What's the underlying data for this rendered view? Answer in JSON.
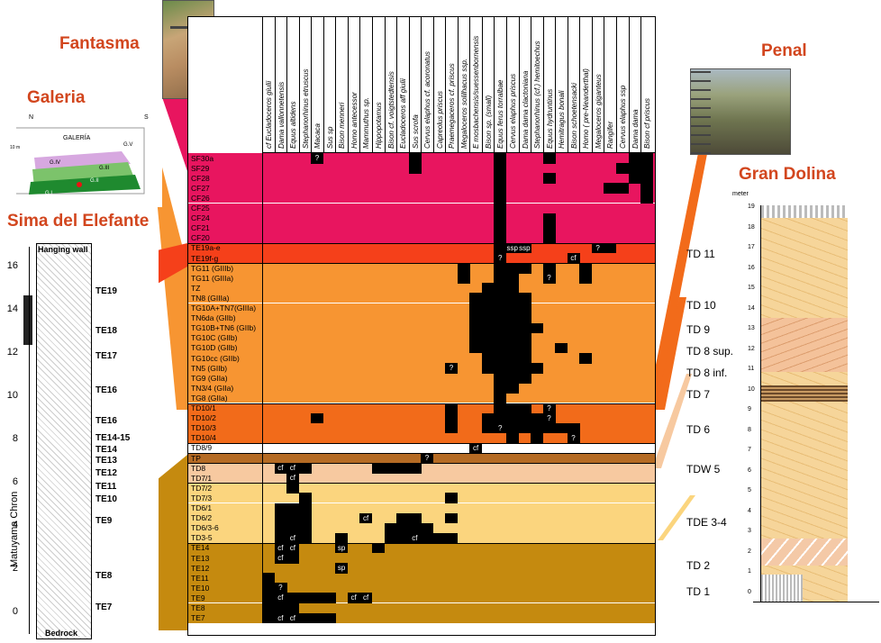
{
  "sites": {
    "fantasma": "Fantasma",
    "galeria": "Galeria",
    "sima": "Sima del Elefante",
    "penal": "Penal",
    "gran_dolina": "Gran Dolina"
  },
  "colors": {
    "sf": "#e8155f",
    "te_upper": "#f5401a",
    "tg": "#f79532",
    "td10": "#f26b1a",
    "tdw": "#f7c9a0",
    "tde": "#fbd57e",
    "te_lower": "#c58a0f",
    "td_brown": "#b56b24"
  },
  "galeria_map": {
    "north": "N",
    "south": "S",
    "title": "GALERÍA",
    "gv": "G.V",
    "giv": "G.IV",
    "giii": "G.III",
    "gii": "G.II",
    "gi": "G.I",
    "scale": "10 m"
  },
  "species": [
    "cf Eucladoceros giulii",
    "Dama vallonnetensis",
    "Equus altidens",
    "Stephanorhinus etruscus",
    "Macaca",
    "Sus sp",
    "Bison menneri",
    "Homo antecessor",
    "Mammuthus sp.",
    "Hippopotamus",
    "Bison cf. voigtstedtensis",
    "Eucladoceros aff giulii",
    "Sus scrofa",
    "Cervus elaphus cf. acoronatus",
    "Capreolus priscus",
    "Praemegaceros cf. priscus",
    "Megaloceros solilhacus ssp.",
    "E mosbachensis/suessenbornensis",
    "Bison sp. (small)",
    "Equus ferus torralbae",
    "Cervus elaphus priscus",
    "Dama dama clactoniana",
    "Stephanorhinus (cf.) hemitoechus",
    "Equus hydruntinus",
    "Hemitragus bonali",
    "Bison schoetensacki",
    "Homo ( pre-Neanderthal)",
    "Megaloceros giganteus",
    "Rangifer",
    "Cervus elaphus ssp",
    "Dama dama",
    "Bison cf priscus"
  ],
  "levels": [
    {
      "name": "SF30a",
      "group": "sf"
    },
    {
      "name": "SF29",
      "group": "sf"
    },
    {
      "name": "CF28",
      "group": "sf"
    },
    {
      "name": "CF27",
      "group": "sf"
    },
    {
      "name": "CF26",
      "group": "sf"
    },
    {
      "name": "CF25",
      "group": "sf"
    },
    {
      "name": "CF24",
      "group": "sf"
    },
    {
      "name": "CF21",
      "group": "sf"
    },
    {
      "name": "CF20",
      "group": "sf"
    },
    {
      "name": "TE19a-e",
      "group": "te_upper"
    },
    {
      "name": "TE19f-g",
      "group": "te_upper"
    },
    {
      "name": "TG11 (GIIIb)",
      "group": "tg"
    },
    {
      "name": "TG11 (GIIIa)",
      "group": "tg"
    },
    {
      "name": "TZ",
      "group": "tg"
    },
    {
      "name": "TN8 (GIIIa)",
      "group": "tg"
    },
    {
      "name": "TG10A+TN7(GIIIa)",
      "group": "tg"
    },
    {
      "name": "TN6da (GIIb)",
      "group": "tg"
    },
    {
      "name": "TG10B+TN6 (GIIb)",
      "group": "tg"
    },
    {
      "name": "TG10C (GIIb)",
      "group": "tg"
    },
    {
      "name": "TG10D (GIIb)",
      "group": "tg"
    },
    {
      "name": "TG10cc (GIIb)",
      "group": "tg"
    },
    {
      "name": "TN5 (GIIb)",
      "group": "tg"
    },
    {
      "name": "TG9 (GIIa)",
      "group": "tg"
    },
    {
      "name": "TN3/4 (GIIa)",
      "group": "tg"
    },
    {
      "name": "TG8 (GIIa)",
      "group": "tg"
    },
    {
      "name": "TD10/1",
      "group": "td10"
    },
    {
      "name": "TD10/2",
      "group": "td10"
    },
    {
      "name": "TD10/3",
      "group": "td10"
    },
    {
      "name": "TD10/4",
      "group": "td10"
    },
    {
      "name": "TD8/9",
      "group": "white"
    },
    {
      "name": "TP",
      "group": "td_brown"
    },
    {
      "name": "TD8",
      "group": "tdw"
    },
    {
      "name": "TD7/1",
      "group": "tdw"
    },
    {
      "name": "TD7/2",
      "group": "tde"
    },
    {
      "name": "TD7/3",
      "group": "tde"
    },
    {
      "name": "TD6/1",
      "group": "tde"
    },
    {
      "name": "TD6/2",
      "group": "tde"
    },
    {
      "name": "TD6/3-6",
      "group": "tde"
    },
    {
      "name": "TD3-5",
      "group": "tde"
    },
    {
      "name": "TE14",
      "group": "te_lower"
    },
    {
      "name": "TE13",
      "group": "te_lower"
    },
    {
      "name": "TE12",
      "group": "te_lower"
    },
    {
      "name": "TE11",
      "group": "te_lower"
    },
    {
      "name": "TE10",
      "group": "te_lower"
    },
    {
      "name": "TE9",
      "group": "te_lower"
    },
    {
      "name": "TE8",
      "group": "te_lower"
    },
    {
      "name": "TE7",
      "group": "te_lower"
    }
  ],
  "presence": [
    {
      "r": 0,
      "c": 4,
      "t": "?"
    },
    {
      "r": 0,
      "c": 12
    },
    {
      "r": 0,
      "c": 19
    },
    {
      "r": 0,
      "c": 23
    },
    {
      "r": 0,
      "c": 30
    },
    {
      "r": 0,
      "c": 31
    },
    {
      "r": 1,
      "c": 12
    },
    {
      "r": 1,
      "c": 19
    },
    {
      "r": 1,
      "c": 29
    },
    {
      "r": 1,
      "c": 30
    },
    {
      "r": 1,
      "c": 31
    },
    {
      "r": 2,
      "c": 19
    },
    {
      "r": 2,
      "c": 23
    },
    {
      "r": 2,
      "c": 30
    },
    {
      "r": 2,
      "c": 31
    },
    {
      "r": 3,
      "c": 19
    },
    {
      "r": 3,
      "c": 28
    },
    {
      "r": 3,
      "c": 29
    },
    {
      "r": 3,
      "c": 31
    },
    {
      "r": 4,
      "c": 19
    },
    {
      "r": 4,
      "c": 31
    },
    {
      "r": 5,
      "c": 19
    },
    {
      "r": 6,
      "c": 19
    },
    {
      "r": 6,
      "c": 23
    },
    {
      "r": 7,
      "c": 19
    },
    {
      "r": 7,
      "c": 23
    },
    {
      "r": 8,
      "c": 19
    },
    {
      "r": 8,
      "c": 23
    },
    {
      "r": 9,
      "c": 19
    },
    {
      "r": 9,
      "c": 20,
      "t": "ssp"
    },
    {
      "r": 9,
      "c": 21,
      "t": "ssp"
    },
    {
      "r": 9,
      "c": 27,
      "t": "?"
    },
    {
      "r": 9,
      "c": 28
    },
    {
      "r": 10,
      "c": 19,
      "t": "?"
    },
    {
      "r": 10,
      "c": 25,
      "t": "cf"
    },
    {
      "r": 11,
      "c": 16
    },
    {
      "r": 11,
      "c": 19
    },
    {
      "r": 11,
      "c": 20
    },
    {
      "r": 11,
      "c": 21
    },
    {
      "r": 11,
      "c": 23
    },
    {
      "r": 11,
      "c": 26
    },
    {
      "r": 12,
      "c": 16
    },
    {
      "r": 12,
      "c": 19
    },
    {
      "r": 12,
      "c": 20
    },
    {
      "r": 12,
      "c": 23,
      "t": "?"
    },
    {
      "r": 12,
      "c": 26
    },
    {
      "r": 13,
      "c": 18
    },
    {
      "r": 13,
      "c": 19
    },
    {
      "r": 13,
      "c": 20
    },
    {
      "r": 14,
      "c": 17
    },
    {
      "r": 14,
      "c": 18
    },
    {
      "r": 14,
      "c": 19
    },
    {
      "r": 14,
      "c": 20
    },
    {
      "r": 14,
      "c": 21
    },
    {
      "r": 15,
      "c": 17
    },
    {
      "r": 15,
      "c": 18
    },
    {
      "r": 15,
      "c": 19
    },
    {
      "r": 15,
      "c": 20
    },
    {
      "r": 15,
      "c": 21
    },
    {
      "r": 16,
      "c": 17
    },
    {
      "r": 16,
      "c": 18
    },
    {
      "r": 16,
      "c": 19
    },
    {
      "r": 16,
      "c": 20
    },
    {
      "r": 16,
      "c": 21
    },
    {
      "r": 17,
      "c": 17
    },
    {
      "r": 17,
      "c": 18
    },
    {
      "r": 17,
      "c": 19
    },
    {
      "r": 17,
      "c": 20
    },
    {
      "r": 17,
      "c": 21
    },
    {
      "r": 17,
      "c": 22
    },
    {
      "r": 18,
      "c": 17
    },
    {
      "r": 18,
      "c": 18
    },
    {
      "r": 18,
      "c": 19
    },
    {
      "r": 18,
      "c": 20
    },
    {
      "r": 18,
      "c": 21
    },
    {
      "r": 19,
      "c": 17
    },
    {
      "r": 19,
      "c": 18
    },
    {
      "r": 19,
      "c": 19
    },
    {
      "r": 19,
      "c": 20
    },
    {
      "r": 19,
      "c": 21
    },
    {
      "r": 19,
      "c": 24
    },
    {
      "r": 20,
      "c": 18
    },
    {
      "r": 20,
      "c": 19
    },
    {
      "r": 20,
      "c": 20
    },
    {
      "r": 20,
      "c": 21
    },
    {
      "r": 20,
      "c": 26
    },
    {
      "r": 21,
      "c": 15,
      "t": "?"
    },
    {
      "r": 21,
      "c": 18
    },
    {
      "r": 21,
      "c": 19
    },
    {
      "r": 21,
      "c": 20
    },
    {
      "r": 21,
      "c": 21
    },
    {
      "r": 21,
      "c": 22
    },
    {
      "r": 22,
      "c": 19
    },
    {
      "r": 22,
      "c": 20
    },
    {
      "r": 22,
      "c": 21
    },
    {
      "r": 23,
      "c": 19
    },
    {
      "r": 23,
      "c": 20
    },
    {
      "r": 24,
      "c": 19
    },
    {
      "r": 25,
      "c": 15
    },
    {
      "r": 25,
      "c": 19
    },
    {
      "r": 25,
      "c": 20
    },
    {
      "r": 25,
      "c": 21
    },
    {
      "r": 25,
      "c": 23,
      "t": "?"
    },
    {
      "r": 26,
      "c": 4
    },
    {
      "r": 26,
      "c": 15
    },
    {
      "r": 26,
      "c": 18
    },
    {
      "r": 26,
      "c": 19
    },
    {
      "r": 26,
      "c": 20
    },
    {
      "r": 26,
      "c": 21
    },
    {
      "r": 26,
      "c": 22
    },
    {
      "r": 26,
      "c": 23,
      "t": "?"
    },
    {
      "r": 27,
      "c": 15
    },
    {
      "r": 27,
      "c": 18
    },
    {
      "r": 27,
      "c": 19,
      "t": "?"
    },
    {
      "r": 27,
      "c": 20
    },
    {
      "r": 27,
      "c": 21
    },
    {
      "r": 27,
      "c": 22
    },
    {
      "r": 27,
      "c": 23
    },
    {
      "r": 27,
      "c": 24
    },
    {
      "r": 27,
      "c": 25
    },
    {
      "r": 28,
      "c": 20
    },
    {
      "r": 28,
      "c": 22
    },
    {
      "r": 28,
      "c": 25,
      "t": "?"
    },
    {
      "r": 29,
      "c": 17,
      "t": "cf"
    },
    {
      "r": 30,
      "c": 13,
      "t": "?"
    },
    {
      "r": 31,
      "c": 1,
      "t": "cf"
    },
    {
      "r": 31,
      "c": 2,
      "t": "cf"
    },
    {
      "r": 31,
      "c": 3
    },
    {
      "r": 31,
      "c": 9
    },
    {
      "r": 31,
      "c": 10
    },
    {
      "r": 31,
      "c": 11
    },
    {
      "r": 31,
      "c": 12
    },
    {
      "r": 32,
      "c": 2,
      "t": "cf"
    },
    {
      "r": 33,
      "c": 2
    },
    {
      "r": 34,
      "c": 3
    },
    {
      "r": 34,
      "c": 15
    },
    {
      "r": 35,
      "c": 1
    },
    {
      "r": 35,
      "c": 2
    },
    {
      "r": 35,
      "c": 3
    },
    {
      "r": 36,
      "c": 1
    },
    {
      "r": 36,
      "c": 2
    },
    {
      "r": 36,
      "c": 3
    },
    {
      "r": 36,
      "c": 8,
      "t": "cf"
    },
    {
      "r": 36,
      "c": 11
    },
    {
      "r": 36,
      "c": 12
    },
    {
      "r": 36,
      "c": 15
    },
    {
      "r": 37,
      "c": 1
    },
    {
      "r": 37,
      "c": 2
    },
    {
      "r": 37,
      "c": 3
    },
    {
      "r": 37,
      "c": 10
    },
    {
      "r": 37,
      "c": 11
    },
    {
      "r": 37,
      "c": 12
    },
    {
      "r": 37,
      "c": 13
    },
    {
      "r": 38,
      "c": 1
    },
    {
      "r": 38,
      "c": 2,
      "t": "cf"
    },
    {
      "r": 38,
      "c": 3
    },
    {
      "r": 38,
      "c": 6
    },
    {
      "r": 38,
      "c": 10
    },
    {
      "r": 38,
      "c": 11
    },
    {
      "r": 38,
      "c": 12,
      "t": "cf"
    },
    {
      "r": 38,
      "c": 13
    },
    {
      "r": 38,
      "c": 14
    },
    {
      "r": 38,
      "c": 15
    },
    {
      "r": 39,
      "c": 1,
      "t": "cf"
    },
    {
      "r": 39,
      "c": 2,
      "t": "cf"
    },
    {
      "r": 39,
      "c": 6,
      "t": "sp"
    },
    {
      "r": 39,
      "c": 9
    },
    {
      "r": 40,
      "c": 1,
      "t": "cf"
    },
    {
      "r": 40,
      "c": 2
    },
    {
      "r": 41,
      "c": 6,
      "t": "sp"
    },
    {
      "r": 42,
      "c": 0
    },
    {
      "r": 43,
      "c": 0
    },
    {
      "r": 43,
      "c": 1,
      "t": "?"
    },
    {
      "r": 44,
      "c": 0
    },
    {
      "r": 44,
      "c": 1,
      "t": "cf"
    },
    {
      "r": 44,
      "c": 2
    },
    {
      "r": 44,
      "c": 3
    },
    {
      "r": 44,
      "c": 4
    },
    {
      "r": 44,
      "c": 5
    },
    {
      "r": 44,
      "c": 7,
      "t": "cf"
    },
    {
      "r": 44,
      "c": 8,
      "t": "cf"
    },
    {
      "r": 45,
      "c": 0
    },
    {
      "r": 45,
      "c": 1
    },
    {
      "r": 45,
      "c": 2
    },
    {
      "r": 46,
      "c": 0
    },
    {
      "r": 46,
      "c": 1,
      "t": "cf"
    },
    {
      "r": 46,
      "c": 2,
      "t": "cf"
    },
    {
      "r": 46,
      "c": 3
    },
    {
      "r": 46,
      "c": 4
    },
    {
      "r": 46,
      "c": 5
    }
  ],
  "gran_dolina": {
    "units": [
      "TD 11",
      "TD 10",
      "TD 9",
      "TD 8 sup.",
      "TD 8 inf.",
      "TD 7",
      "TD 6",
      "TDW 5",
      "TDE 3-4",
      "TD 2",
      "TD 1"
    ],
    "meters_label": "meter",
    "scale": [
      "19",
      "18",
      "17",
      "16",
      "15",
      "14",
      "13",
      "12",
      "11",
      "10",
      "9",
      "8",
      "7",
      "6",
      "5",
      "4",
      "3",
      "2",
      "1",
      "0"
    ]
  },
  "sima": {
    "axis": [
      "16",
      "14",
      "12",
      "10",
      "8",
      "6",
      "4",
      "2",
      "0"
    ],
    "chron": "Matuyama Chron",
    "hanging_wall": "Hanging wall",
    "bedrock": "Bedrock",
    "units": [
      "TE19",
      "TE18",
      "TE17",
      "TE16",
      "TE16",
      "TE14-15",
      "TE14",
      "TE13",
      "TE12",
      "TE11",
      "TE10",
      "TE9",
      "TE8",
      "TE7"
    ]
  }
}
